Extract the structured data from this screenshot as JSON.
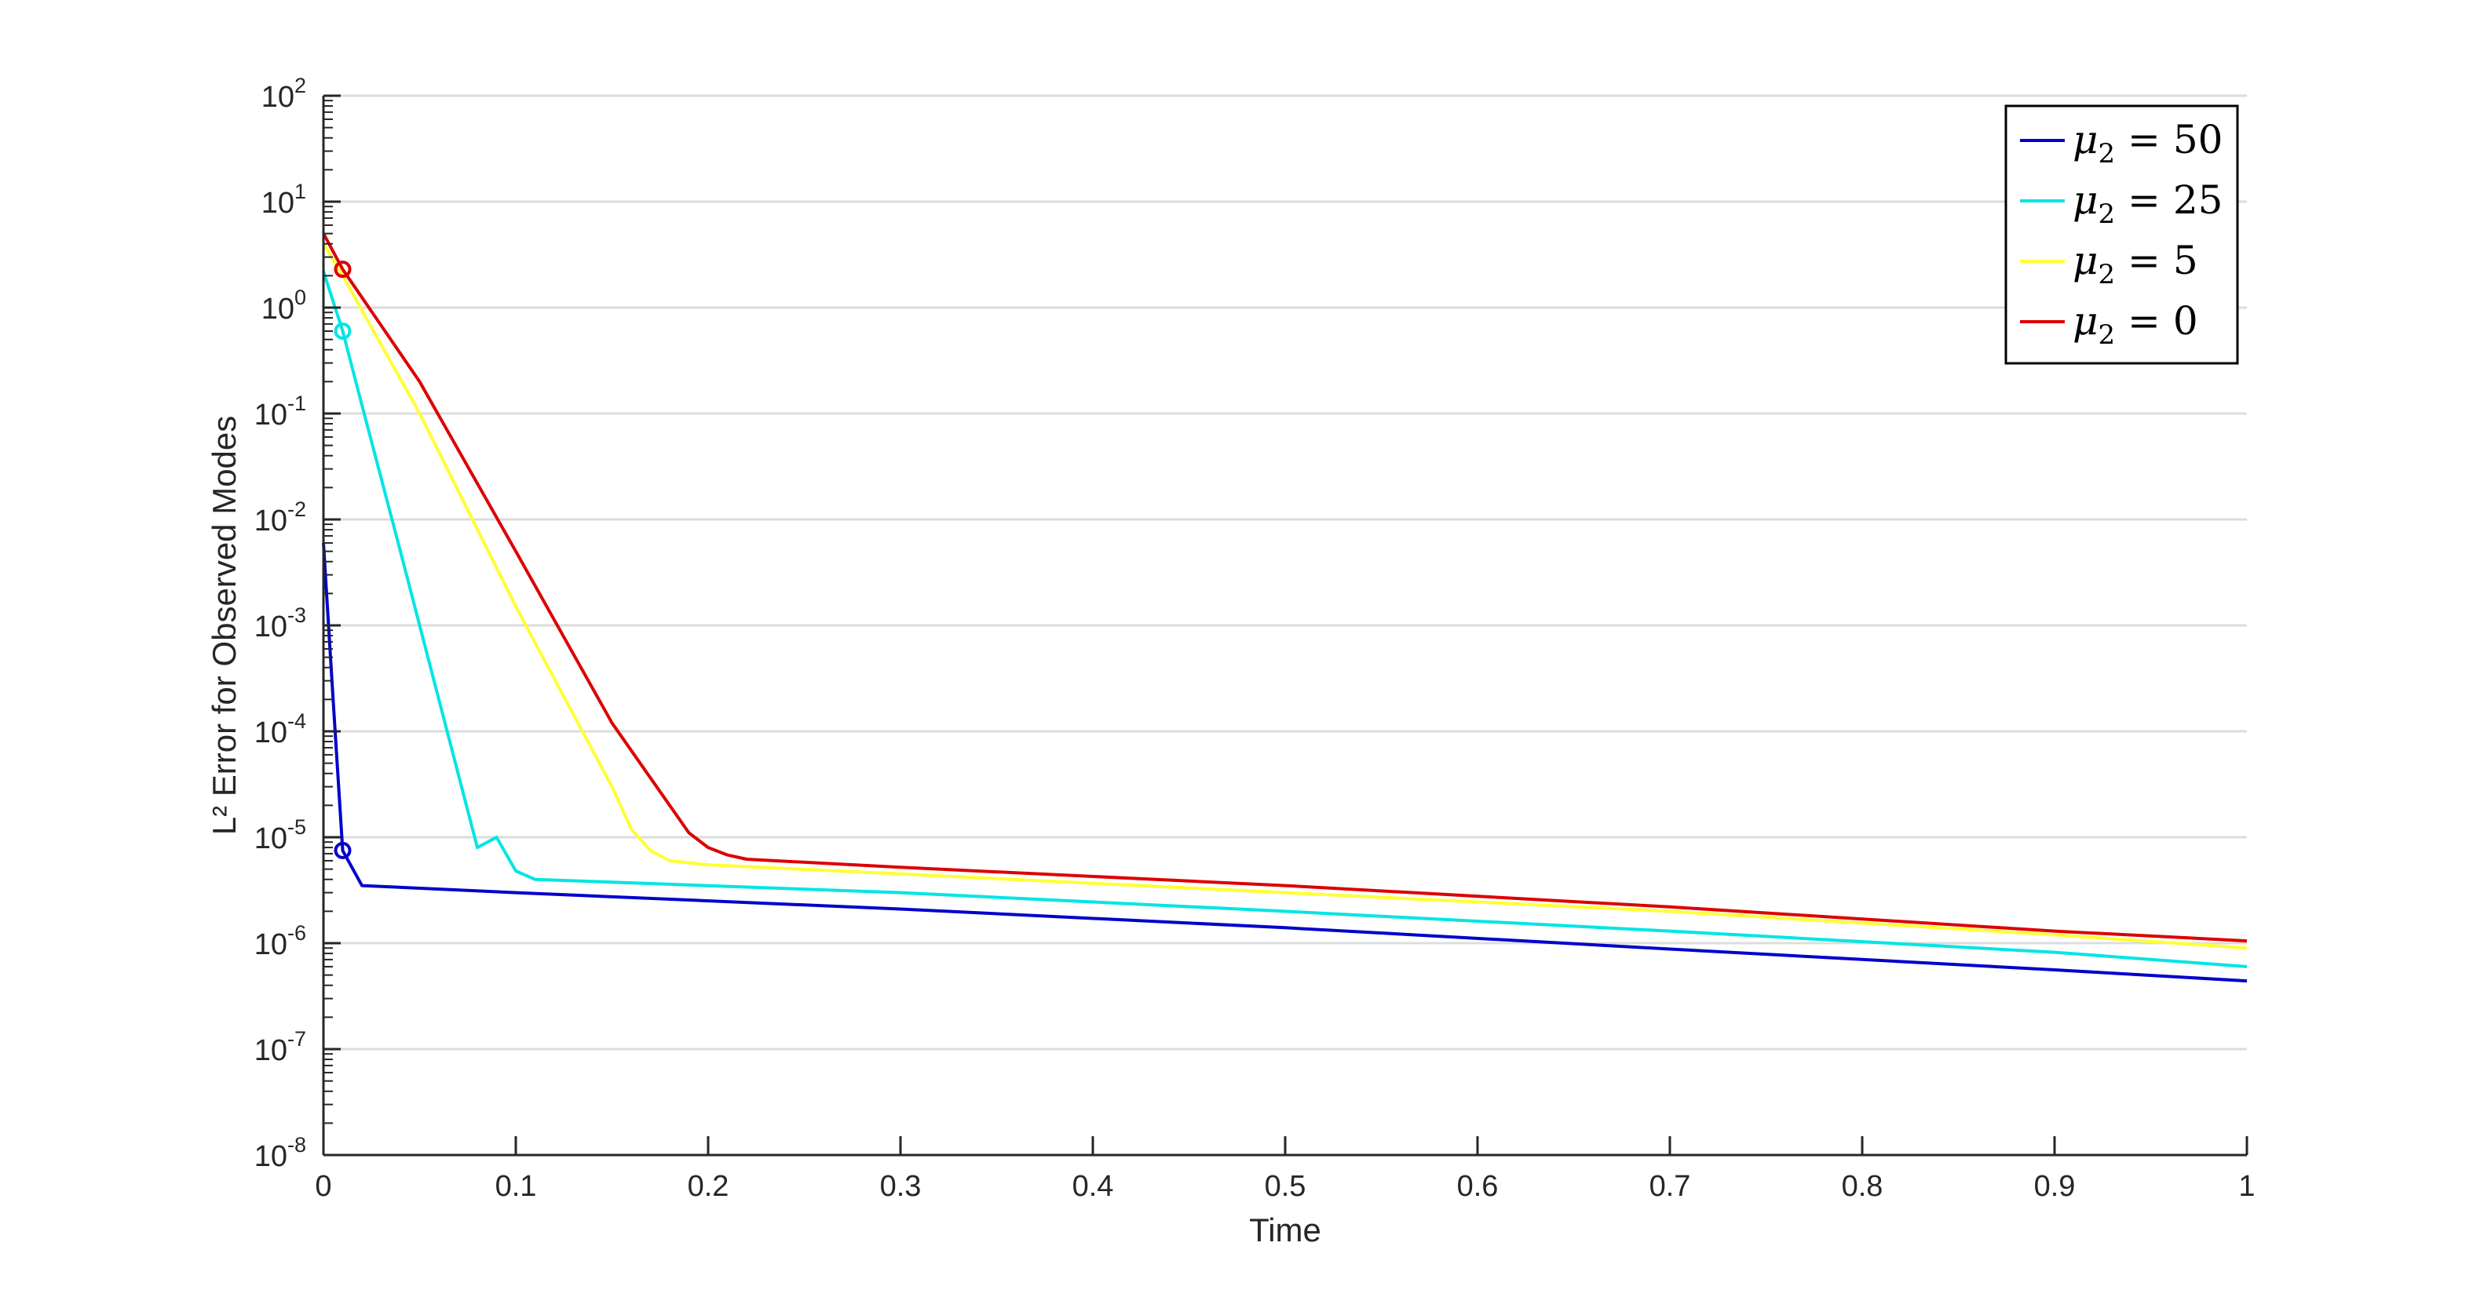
{
  "chart_data": {
    "type": "line",
    "xlabel": "Time",
    "ylabel": "L² Error for Observed Modes",
    "xlim": [
      0,
      1
    ],
    "ylim": [
      1e-08,
      100
    ],
    "yscale": "log",
    "grid": "horizontal",
    "legend_position": "top-right",
    "x_ticks": [
      "0",
      "0.1",
      "0.2",
      "0.3",
      "0.4",
      "0.5",
      "0.6",
      "0.7",
      "0.8",
      "0.9",
      "1"
    ],
    "y_ticks": [
      {
        "base": "10",
        "exp": "2"
      },
      {
        "base": "10",
        "exp": "1"
      },
      {
        "base": "10",
        "exp": "0"
      },
      {
        "base": "10",
        "exp": "-1"
      },
      {
        "base": "10",
        "exp": "-2"
      },
      {
        "base": "10",
        "exp": "-3"
      },
      {
        "base": "10",
        "exp": "-4"
      },
      {
        "base": "10",
        "exp": "-5"
      },
      {
        "base": "10",
        "exp": "-6"
      },
      {
        "base": "10",
        "exp": "-7"
      },
      {
        "base": "10",
        "exp": "-8"
      }
    ],
    "series": [
      {
        "name": "μ₂ = 50",
        "legend_var": "μ",
        "legend_sub": "2",
        "legend_rest": "= 50",
        "color": "#0000cc",
        "points": [
          [
            0,
            0.006
          ],
          [
            0.005,
            0.0002
          ],
          [
            0.01,
            7.5e-06
          ],
          [
            0.02,
            3.5e-06
          ],
          [
            0.1,
            3e-06
          ],
          [
            0.3,
            2.1e-06
          ],
          [
            0.5,
            1.4e-06
          ],
          [
            0.7,
            8.8e-07
          ],
          [
            0.9,
            5.6e-07
          ],
          [
            1.0,
            4.4e-07
          ]
        ],
        "markers": [
          [
            0.01,
            7.5e-06
          ]
        ]
      },
      {
        "name": "μ₂ = 25",
        "legend_var": "μ",
        "legend_sub": "2",
        "legend_rest": "= 25",
        "color": "#00e5e5",
        "points": [
          [
            0,
            2.2
          ],
          [
            0.01,
            0.6
          ],
          [
            0.02,
            0.12
          ],
          [
            0.04,
            0.005
          ],
          [
            0.06,
            0.0002
          ],
          [
            0.08,
            8e-06
          ],
          [
            0.09,
            1e-05
          ],
          [
            0.1,
            4.8e-06
          ],
          [
            0.11,
            4e-06
          ],
          [
            0.3,
            3e-06
          ],
          [
            0.5,
            2e-06
          ],
          [
            0.7,
            1.3e-06
          ],
          [
            0.9,
            8.2e-07
          ],
          [
            1.0,
            6e-07
          ]
        ],
        "markers": [
          [
            0.01,
            0.6
          ]
        ]
      },
      {
        "name": "μ₂ = 5",
        "legend_var": "μ",
        "legend_sub": "2",
        "legend_rest": "= 5",
        "color": "#ffff33",
        "points": [
          [
            0,
            4.0
          ],
          [
            0.01,
            2.0
          ],
          [
            0.05,
            0.1
          ],
          [
            0.1,
            0.0015
          ],
          [
            0.15,
            3e-05
          ],
          [
            0.16,
            1.2e-05
          ],
          [
            0.17,
            7.5e-06
          ],
          [
            0.18,
            6e-06
          ],
          [
            0.2,
            5.5e-06
          ],
          [
            0.3,
            4.5e-06
          ],
          [
            0.5,
            3e-06
          ],
          [
            0.7,
            2e-06
          ],
          [
            0.9,
            1.2e-06
          ],
          [
            1.0,
            9e-07
          ]
        ],
        "markers": []
      },
      {
        "name": "μ₂ = 0",
        "legend_var": "μ",
        "legend_sub": "2",
        "legend_rest": "= 0",
        "color": "#dd0000",
        "points": [
          [
            0,
            5.0
          ],
          [
            0.01,
            2.3
          ],
          [
            0.05,
            0.2
          ],
          [
            0.1,
            0.005
          ],
          [
            0.15,
            0.00012
          ],
          [
            0.18,
            2e-05
          ],
          [
            0.19,
            1.1e-05
          ],
          [
            0.2,
            8e-06
          ],
          [
            0.21,
            6.8e-06
          ],
          [
            0.22,
            6.2e-06
          ],
          [
            0.3,
            5.2e-06
          ],
          [
            0.5,
            3.5e-06
          ],
          [
            0.7,
            2.2e-06
          ],
          [
            0.9,
            1.3e-06
          ],
          [
            1.0,
            1.05e-06
          ]
        ],
        "markers": [
          [
            0.01,
            2.3
          ]
        ]
      }
    ]
  }
}
